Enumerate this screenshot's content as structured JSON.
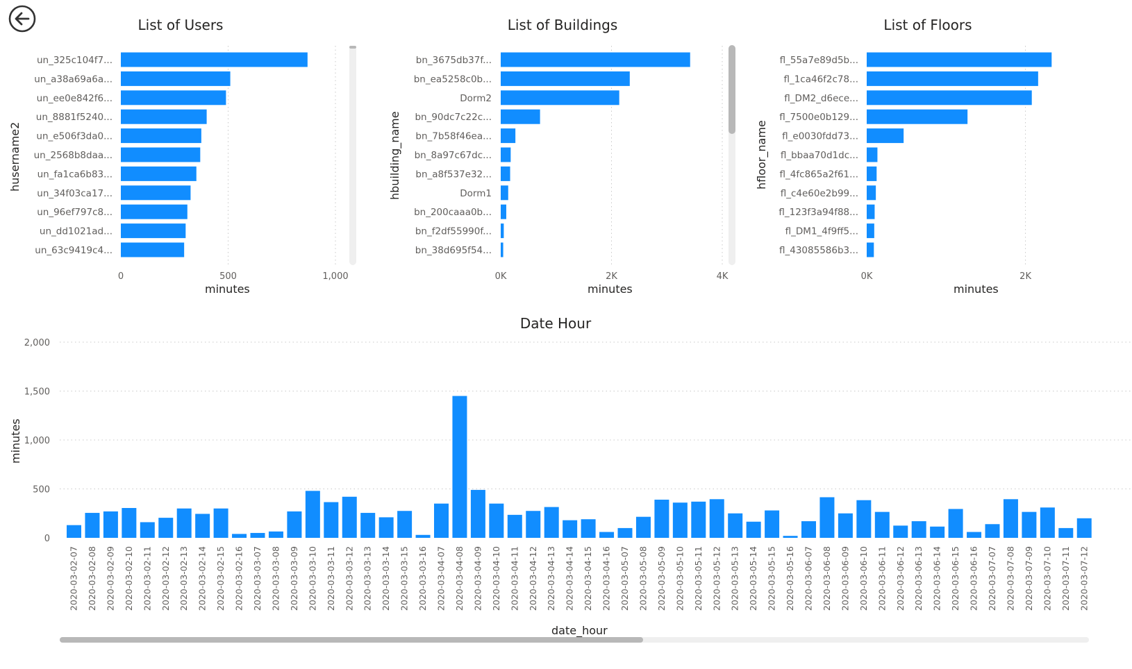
{
  "icons": {
    "back": "back-arrow-circle-icon"
  },
  "colors": {
    "bar": "#118DFF",
    "grid": "#c8c8c8",
    "text": "#605E5C"
  },
  "chart_data": [
    {
      "type": "bar",
      "orientation": "horizontal",
      "title": "List of Users",
      "xlabel": "minutes",
      "ylabel": "husername2",
      "xlim": [
        0,
        1000
      ],
      "xticks": [
        0,
        500,
        1000
      ],
      "xtick_labels": [
        "0",
        "500",
        "1,000"
      ],
      "grid": true,
      "categories": [
        "un_325c104f7...",
        "un_a38a69a6a...",
        "un_ee0e842f6...",
        "un_8881f5240...",
        "un_e506f3da0...",
        "un_2568b8daa...",
        "un_fa1ca6b83...",
        "un_34f03ca17...",
        "un_96ef797c8...",
        "un_dd1021ad...",
        "un_63c9419c4..."
      ],
      "values": [
        870,
        510,
        490,
        400,
        375,
        370,
        352,
        325,
        310,
        302,
        295
      ]
    },
    {
      "type": "bar",
      "orientation": "horizontal",
      "title": "List of Buildings",
      "xlabel": "minutes",
      "ylabel": "hbuilding_name",
      "xlim": [
        0,
        4000
      ],
      "xticks": [
        0,
        2000,
        4000
      ],
      "xtick_labels": [
        "0K",
        "2K",
        "4K"
      ],
      "grid": true,
      "categories": [
        "bn_3675db37f...",
        "bn_ea5258c0b...",
        "Dorm2",
        "bn_90dc7c22c...",
        "bn_7b58f46ea...",
        "bn_8a97c67dc...",
        "bn_a8f537e32...",
        "Dorm1",
        "bn_200caaa0b...",
        "bn_f2df55990f...",
        "bn_38d695f54..."
      ],
      "values": [
        3420,
        2330,
        2140,
        710,
        265,
        180,
        170,
        135,
        100,
        55,
        45
      ]
    },
    {
      "type": "bar",
      "orientation": "horizontal",
      "title": "List of Floors",
      "xlabel": "minutes",
      "ylabel": "hfloor_name",
      "xlim": [
        0,
        2800
      ],
      "xticks": [
        0,
        2000
      ],
      "xtick_labels": [
        "0K",
        "2K"
      ],
      "grid": true,
      "categories": [
        "fl_55a7e89d5b...",
        "fl_1ca46f2c78...",
        "fl_DM2_d6ece...",
        "fl_7500e0b129...",
        "fl_e0030fdd73...",
        "fl_bbaa70d1dc...",
        "fl_4fc865a2f61...",
        "fl_c4e60e2b99...",
        "fl_123f3a94f88...",
        "fl_DM1_4f9ff5...",
        "fl_43085586b3..."
      ],
      "values": [
        2330,
        2160,
        2080,
        1270,
        465,
        135,
        125,
        115,
        100,
        95,
        90
      ]
    },
    {
      "type": "bar",
      "title": "Date Hour",
      "xlabel": "date_hour",
      "ylabel": "minutes",
      "ylim": [
        0,
        2000
      ],
      "yticks": [
        0,
        500,
        1000,
        1500,
        2000
      ],
      "ytick_labels": [
        "0",
        "500",
        "1,000",
        "1,500",
        "2,000"
      ],
      "grid": true,
      "categories": [
        "2020-03-02-07",
        "2020-03-02-08",
        "2020-03-02-09",
        "2020-03-02-10",
        "2020-03-02-11",
        "2020-03-02-12",
        "2020-03-02-13",
        "2020-03-02-14",
        "2020-03-02-15",
        "2020-03-02-16",
        "2020-03-03-07",
        "2020-03-03-08",
        "2020-03-03-09",
        "2020-03-03-10",
        "2020-03-03-11",
        "2020-03-03-12",
        "2020-03-03-13",
        "2020-03-03-14",
        "2020-03-03-15",
        "2020-03-03-16",
        "2020-03-04-07",
        "2020-03-04-08",
        "2020-03-04-09",
        "2020-03-04-10",
        "2020-03-04-11",
        "2020-03-04-12",
        "2020-03-04-13",
        "2020-03-04-14",
        "2020-03-04-15",
        "2020-03-04-16",
        "2020-03-05-07",
        "2020-03-05-08",
        "2020-03-05-09",
        "2020-03-05-10",
        "2020-03-05-11",
        "2020-03-05-12",
        "2020-03-05-13",
        "2020-03-05-14",
        "2020-03-05-15",
        "2020-03-05-16",
        "2020-03-06-07",
        "2020-03-06-08",
        "2020-03-06-09",
        "2020-03-06-10",
        "2020-03-06-11",
        "2020-03-06-12",
        "2020-03-06-13",
        "2020-03-06-14",
        "2020-03-06-15",
        "2020-03-06-16",
        "2020-03-07-07",
        "2020-03-07-08",
        "2020-03-07-09",
        "2020-03-07-10",
        "2020-03-07-11",
        "2020-03-07-12"
      ],
      "values": [
        130,
        255,
        270,
        305,
        160,
        205,
        300,
        245,
        300,
        40,
        50,
        65,
        270,
        480,
        365,
        420,
        255,
        210,
        275,
        30,
        350,
        1450,
        490,
        350,
        235,
        275,
        315,
        180,
        190,
        60,
        100,
        215,
        390,
        360,
        370,
        395,
        250,
        165,
        280,
        20,
        170,
        415,
        250,
        385,
        265,
        125,
        170,
        115,
        295,
        60,
        140,
        395,
        265,
        310,
        100,
        200
      ]
    }
  ]
}
